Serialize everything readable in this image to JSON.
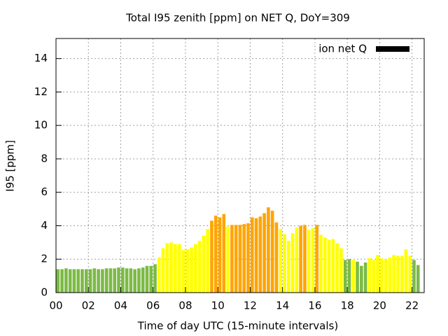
{
  "chart_data": {
    "type": "bar",
    "title": "Total I95 zenith [ppm] on NET Q, DoY=309",
    "xlabel": "Time of day UTC (15-minute intervals)",
    "ylabel": "I95 [ppm]",
    "x": [
      0,
      0.25,
      0.5,
      0.75,
      1,
      1.25,
      1.5,
      1.75,
      2,
      2.25,
      2.5,
      2.75,
      3,
      3.25,
      3.5,
      3.75,
      4,
      4.25,
      4.5,
      4.75,
      5,
      5.25,
      5.5,
      5.75,
      6,
      6.25,
      6.5,
      6.75,
      7,
      7.25,
      7.5,
      7.75,
      8,
      8.25,
      8.5,
      8.75,
      9,
      9.25,
      9.5,
      9.75,
      10,
      10.25,
      10.5,
      10.75,
      11,
      11.25,
      11.5,
      11.75,
      12,
      12.25,
      12.5,
      12.75,
      13,
      13.25,
      13.5,
      13.75,
      14,
      14.25,
      14.5,
      14.75,
      15,
      15.25,
      15.5,
      15.75,
      16,
      16.25,
      16.5,
      16.75,
      17,
      17.25,
      17.5,
      17.75,
      18,
      18.25,
      18.5,
      18.75,
      19,
      19.25,
      19.5,
      19.75,
      20,
      20.25,
      20.5,
      20.75,
      21,
      21.25,
      21.5,
      21.75,
      22,
      22.25
    ],
    "series": [
      {
        "name": "ion net Q",
        "color": "#000000",
        "values": [
          1.4,
          1.4,
          1.45,
          1.4,
          1.4,
          1.4,
          1.4,
          1.4,
          1.4,
          1.45,
          1.4,
          1.4,
          1.45,
          1.45,
          1.45,
          1.5,
          1.5,
          1.45,
          1.45,
          1.4,
          1.45,
          1.5,
          1.6,
          1.6,
          1.7,
          2.1,
          2.65,
          2.95,
          3.0,
          2.9,
          2.9,
          2.55,
          2.6,
          2.7,
          2.9,
          3.1,
          3.4,
          3.8,
          4.3,
          4.6,
          4.5,
          4.7,
          3.95,
          4.05,
          4.05,
          4.05,
          4.1,
          4.15,
          4.5,
          4.45,
          4.55,
          4.75,
          5.1,
          4.9,
          4.2,
          3.8,
          3.5,
          3.1,
          3.55,
          3.9,
          4.0,
          4.05,
          3.75,
          3.85,
          4.05,
          3.45,
          3.3,
          3.15,
          3.2,
          2.95,
          2.65,
          1.95,
          2.0,
          1.95,
          1.85,
          1.6,
          1.8,
          2.05,
          1.95,
          2.25,
          2.05,
          2.0,
          2.1,
          2.25,
          2.2,
          2.2,
          2.6,
          2.2,
          1.95,
          1.65
        ],
        "colors": [
          "#7cba45",
          "#7cba45",
          "#7cba45",
          "#7cba45",
          "#7cba45",
          "#7cba45",
          "#7cba45",
          "#7cba45",
          "#7cba45",
          "#7cba45",
          "#7cba45",
          "#7cba45",
          "#7cba45",
          "#7cba45",
          "#7cba45",
          "#7cba45",
          "#7cba45",
          "#7cba45",
          "#7cba45",
          "#7cba45",
          "#7cba45",
          "#7cba45",
          "#7cba45",
          "#7cba45",
          "#7cba45",
          "#ffff00",
          "#ffff00",
          "#ffff00",
          "#ffff00",
          "#ffff00",
          "#ffff00",
          "#ffff00",
          "#ffff00",
          "#ffff00",
          "#ffff00",
          "#ffff00",
          "#ffff00",
          "#ffff00",
          "#ffa500",
          "#ffa500",
          "#ffa500",
          "#ffa500",
          "#ffff00",
          "#ffa500",
          "#ffa500",
          "#ffa500",
          "#ffa500",
          "#ffa500",
          "#ffa500",
          "#ffa500",
          "#ffa500",
          "#ffa500",
          "#ffa500",
          "#ffa500",
          "#ffa500",
          "#ffff00",
          "#ffff00",
          "#ffff00",
          "#ffff00",
          "#ffff00",
          "#ffa500",
          "#ffa500",
          "#ffff00",
          "#ffff00",
          "#ffa500",
          "#ffff00",
          "#ffff00",
          "#ffff00",
          "#ffff00",
          "#ffff00",
          "#ffff00",
          "#7cba45",
          "#7cba45",
          "#ffff00",
          "#7cba45",
          "#7cba45",
          "#7cba45",
          "#ffff00",
          "#ffff00",
          "#ffff00",
          "#ffff00",
          "#ffff00",
          "#ffff00",
          "#ffff00",
          "#ffff00",
          "#ffff00",
          "#ffff00",
          "#ffff00",
          "#7cba45",
          "#7cba45"
        ]
      }
    ],
    "xlim": [
      0,
      22.75
    ],
    "ylim": [
      0,
      15.2
    ],
    "xticks": [
      {
        "value": 0,
        "label": "00"
      },
      {
        "value": 2,
        "label": "02"
      },
      {
        "value": 4,
        "label": "04"
      },
      {
        "value": 6,
        "label": "06"
      },
      {
        "value": 8,
        "label": "08"
      },
      {
        "value": 10,
        "label": "10"
      },
      {
        "value": 12,
        "label": "12"
      },
      {
        "value": 14,
        "label": "14"
      },
      {
        "value": 16,
        "label": "16"
      },
      {
        "value": 18,
        "label": "18"
      },
      {
        "value": 20,
        "label": "20"
      },
      {
        "value": 22,
        "label": "22"
      }
    ],
    "yticks": [
      0,
      2,
      4,
      6,
      8,
      10,
      12,
      14
    ],
    "grid": true,
    "legend": "top-right"
  }
}
